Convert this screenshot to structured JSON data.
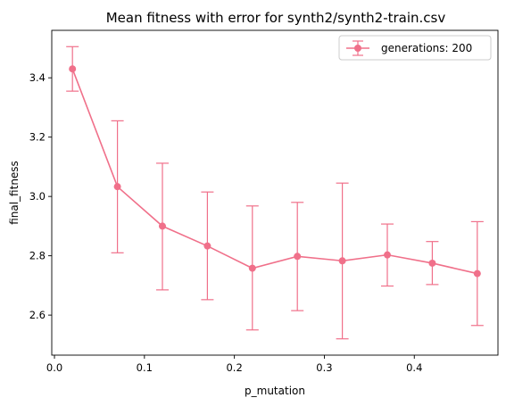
{
  "chart_data": {
    "type": "line",
    "title": "Mean fitness with error for synth2/synth2-train.csv",
    "xlabel": "p_mutation",
    "ylabel": "final_fitness",
    "xlim": [
      -0.003,
      0.493
    ],
    "ylim": [
      2.465,
      3.56
    ],
    "xticks": [
      0.0,
      0.1,
      0.2,
      0.3,
      0.4
    ],
    "xtick_labels": [
      "0.0",
      "0.1",
      "0.2",
      "0.3",
      "0.4"
    ],
    "yticks": [
      2.6,
      2.8,
      3.0,
      3.2,
      3.4
    ],
    "ytick_labels": [
      "2.6",
      "2.8",
      "3.0",
      "3.2",
      "3.4"
    ],
    "grid": false,
    "legend_position": "top-right",
    "series": [
      {
        "name": "generations: 200",
        "color": "#f0708a",
        "marker": "circle",
        "x": [
          0.02,
          0.07,
          0.12,
          0.17,
          0.22,
          0.27,
          0.32,
          0.37,
          0.42,
          0.47
        ],
        "y": [
          3.43,
          3.033,
          2.9,
          2.833,
          2.758,
          2.798,
          2.783,
          2.803,
          2.775,
          2.74
        ],
        "err_low": [
          3.355,
          2.81,
          2.685,
          2.652,
          2.55,
          2.615,
          2.52,
          2.698,
          2.703,
          2.565
        ],
        "err_high": [
          3.505,
          3.255,
          3.112,
          3.015,
          2.968,
          2.98,
          3.045,
          2.907,
          2.848,
          2.915
        ]
      }
    ]
  }
}
